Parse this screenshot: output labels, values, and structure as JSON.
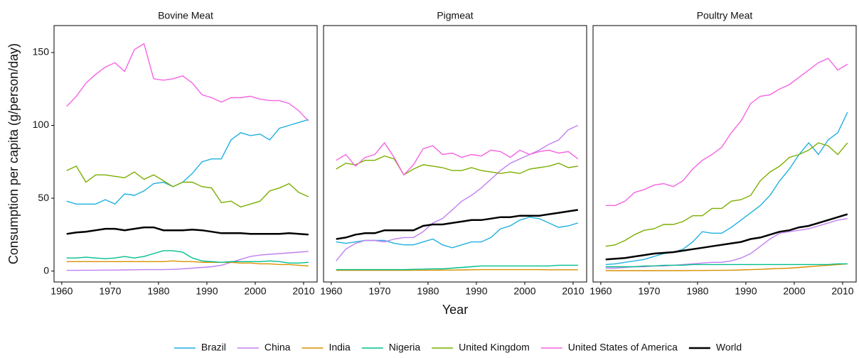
{
  "chart_data": [
    {
      "type": "line",
      "title": "Bovine Meat",
      "ylabel": "Consumption per capita (g/person/day)",
      "x": [
        1961,
        1963,
        1965,
        1967,
        1969,
        1971,
        1973,
        1975,
        1977,
        1979,
        1981,
        1983,
        1985,
        1987,
        1989,
        1991,
        1993,
        1995,
        1997,
        1999,
        2001,
        2003,
        2005,
        2007,
        2009,
        2011
      ],
      "xlim": [
        1958.4,
        2012.8
      ],
      "xticks": [
        1960,
        1970,
        1980,
        1990,
        2000,
        2010
      ],
      "ylim": [
        -7.5,
        168.5
      ],
      "yticks": [
        0,
        50,
        100,
        150
      ],
      "series": [
        {
          "name": "Brazil",
          "color": "#1fb0e0",
          "values": [
            48,
            46,
            46,
            46,
            49,
            46,
            53,
            52,
            55,
            60,
            61,
            58,
            61,
            67,
            75,
            77,
            77,
            90,
            95,
            93,
            94,
            90,
            98,
            100,
            102,
            104
          ]
        },
        {
          "name": "China",
          "color": "#c080f0",
          "values": [
            0.5,
            0.5,
            0.6,
            0.6,
            0.7,
            0.7,
            0.8,
            0.9,
            1,
            1,
            1,
            1.2,
            1.5,
            2,
            2.5,
            3,
            4,
            6,
            8,
            10,
            11,
            11.5,
            12,
            12.5,
            13,
            13.5
          ]
        },
        {
          "name": "India",
          "color": "#d89000",
          "values": [
            6.5,
            6.5,
            6.5,
            6.5,
            6.5,
            6.5,
            6.5,
            6.5,
            6.5,
            6.5,
            6.5,
            7,
            6.5,
            6.5,
            6,
            6,
            6,
            6,
            5.5,
            5.5,
            5,
            5,
            4.5,
            4.5,
            4,
            3.5
          ]
        },
        {
          "name": "Nigeria",
          "color": "#00bf8c",
          "values": [
            9,
            9,
            9.5,
            9,
            8.5,
            9,
            10,
            9,
            10,
            12,
            14,
            14,
            13,
            9,
            7,
            6.5,
            6,
            6.5,
            6.5,
            6.5,
            6.5,
            7,
            6.5,
            5.5,
            5.5,
            6
          ]
        },
        {
          "name": "United Kingdom",
          "color": "#7cae00",
          "values": [
            69,
            72,
            61,
            66,
            66,
            65,
            64,
            68,
            63,
            66,
            62,
            58,
            61,
            61,
            58,
            57,
            47,
            48,
            44,
            46,
            48,
            55,
            57,
            60,
            54,
            51
          ]
        },
        {
          "name": "United States of America",
          "color": "#f564e3",
          "values": [
            113,
            120,
            129,
            135,
            140,
            143,
            137,
            152,
            156,
            132,
            131,
            132,
            134,
            129,
            121,
            119,
            116,
            119,
            119,
            120,
            118,
            117,
            117,
            115,
            110,
            103
          ]
        },
        {
          "name": "World",
          "color": "#000000",
          "values": [
            25.5,
            26.5,
            27,
            28,
            29,
            29,
            28,
            29,
            30,
            30,
            28,
            28,
            28,
            28.5,
            28,
            27,
            26,
            26,
            26,
            25.5,
            25.5,
            25.5,
            25.5,
            26,
            25.5,
            25
          ]
        }
      ]
    },
    {
      "type": "line",
      "title": "Pigmeat",
      "xlabel": "Year",
      "x": [
        1961,
        1963,
        1965,
        1967,
        1969,
        1971,
        1973,
        1975,
        1977,
        1979,
        1981,
        1983,
        1985,
        1987,
        1989,
        1991,
        1993,
        1995,
        1997,
        1999,
        2001,
        2003,
        2005,
        2007,
        2009,
        2011
      ],
      "xlim": [
        1958.4,
        2012.8
      ],
      "xticks": [
        1960,
        1970,
        1980,
        1990,
        2000,
        2010
      ],
      "ylim": [
        -7.5,
        168.5
      ],
      "series": [
        {
          "name": "Brazil",
          "color": "#1fb0e0",
          "values": [
            20,
            19,
            20,
            21,
            21,
            21,
            19,
            18,
            18,
            20,
            22,
            18,
            16,
            18,
            20,
            20,
            23,
            29,
            31,
            35,
            37,
            36,
            33,
            30,
            31,
            33
          ]
        },
        {
          "name": "China",
          "color": "#c080f0",
          "values": [
            7,
            15,
            19,
            21,
            21,
            20,
            22,
            23,
            23,
            27,
            33,
            36,
            42,
            48,
            52,
            57,
            63,
            69,
            74,
            77,
            80,
            83,
            87,
            90,
            97,
            100
          ]
        },
        {
          "name": "India",
          "color": "#d89000",
          "values": [
            0.5,
            0.5,
            0.5,
            0.5,
            0.5,
            0.5,
            0.5,
            0.5,
            0.6,
            0.6,
            0.6,
            0.7,
            0.7,
            0.8,
            0.9,
            1,
            1,
            1,
            1,
            1,
            1,
            1,
            0.9,
            0.9,
            0.9,
            0.9
          ]
        },
        {
          "name": "Nigeria",
          "color": "#00bf8c",
          "values": [
            1,
            1,
            1,
            1,
            1,
            1,
            1,
            1,
            1.2,
            1.3,
            1.5,
            1.5,
            2,
            2.5,
            3,
            3.5,
            3.5,
            3.5,
            3.5,
            3.5,
            3.5,
            3.5,
            3.5,
            4,
            4,
            4
          ]
        },
        {
          "name": "United Kingdom",
          "color": "#7cae00",
          "values": [
            70,
            74,
            73,
            76,
            76,
            79,
            77,
            66,
            70,
            73,
            72,
            71,
            69,
            69,
            71,
            69,
            68,
            67,
            68,
            67,
            70,
            71,
            72,
            74,
            71,
            72
          ]
        },
        {
          "name": "United States of America",
          "color": "#f564e3",
          "values": [
            76,
            80,
            72,
            78,
            80,
            88,
            78,
            66,
            73,
            84,
            86,
            80,
            81,
            78,
            80,
            79,
            83,
            82,
            78,
            83,
            80,
            82,
            83,
            81,
            82,
            77
          ]
        },
        {
          "name": "World",
          "color": "#000000",
          "values": [
            22,
            23,
            25,
            26,
            26,
            28,
            28,
            28,
            28,
            31,
            32,
            32,
            33,
            34,
            35,
            35,
            36,
            37,
            37,
            38,
            38,
            38,
            39,
            40,
            41,
            42
          ]
        }
      ]
    },
    {
      "type": "line",
      "title": "Poultry Meat",
      "x": [
        1961,
        1963,
        1965,
        1967,
        1969,
        1971,
        1973,
        1975,
        1977,
        1979,
        1981,
        1983,
        1985,
        1987,
        1989,
        1991,
        1993,
        1995,
        1997,
        1999,
        2001,
        2003,
        2005,
        2007,
        2009,
        2011
      ],
      "xlim": [
        1958.4,
        2012.8
      ],
      "xticks": [
        1960,
        1970,
        1980,
        1990,
        2000,
        2010
      ],
      "ylim": [
        -7.5,
        168.5
      ],
      "series": [
        {
          "name": "Brazil",
          "color": "#1fb0e0",
          "values": [
            4.5,
            5,
            6,
            7,
            8,
            10,
            12,
            13,
            15,
            20,
            27,
            26,
            26,
            30,
            35,
            40,
            45,
            52,
            62,
            70,
            80,
            88,
            80,
            90,
            95,
            109
          ]
        },
        {
          "name": "China",
          "color": "#c080f0",
          "values": [
            2,
            2,
            2.5,
            3,
            3,
            3.5,
            3.5,
            4,
            4.5,
            5,
            5.5,
            6,
            6,
            7,
            9,
            12,
            17,
            22,
            26,
            27,
            28,
            29,
            31,
            33,
            35,
            36
          ]
        },
        {
          "name": "India",
          "color": "#d89000",
          "values": [
            0.3,
            0.3,
            0.3,
            0.3,
            0.3,
            0.3,
            0.3,
            0.3,
            0.3,
            0.4,
            0.4,
            0.5,
            0.5,
            0.6,
            0.8,
            1,
            1.2,
            1.5,
            1.8,
            2,
            2.5,
            3,
            3.5,
            4,
            4.5,
            5
          ]
        },
        {
          "name": "Nigeria",
          "color": "#00bf8c",
          "values": [
            3,
            3,
            3,
            3,
            3.5,
            3.5,
            4,
            4,
            4,
            4.5,
            4.5,
            4.5,
            4.5,
            4.5,
            4.5,
            4.5,
            4.5,
            4.5,
            4.5,
            4.5,
            4.5,
            4.5,
            4.5,
            4.5,
            5,
            5
          ]
        },
        {
          "name": "United Kingdom",
          "color": "#7cae00",
          "values": [
            17,
            18,
            21,
            25,
            28,
            29,
            32,
            32,
            34,
            38,
            38,
            43,
            43,
            48,
            49,
            52,
            62,
            68,
            72,
            78,
            80,
            83,
            88,
            86,
            80,
            88
          ]
        },
        {
          "name": "United States of America",
          "color": "#f564e3",
          "values": [
            45,
            45,
            48,
            54,
            56,
            59,
            60,
            58,
            62,
            70,
            76,
            80,
            85,
            95,
            103,
            115,
            120,
            121,
            125,
            128,
            133,
            138,
            143,
            146,
            138,
            142
          ]
        },
        {
          "name": "World",
          "color": "#000000",
          "values": [
            8,
            8.5,
            9,
            10,
            11,
            12,
            12.5,
            13,
            14,
            15,
            16,
            17,
            18,
            19,
            20,
            22,
            23,
            25,
            27,
            28,
            30,
            31,
            33,
            35,
            37,
            39
          ]
        }
      ]
    }
  ]
}
